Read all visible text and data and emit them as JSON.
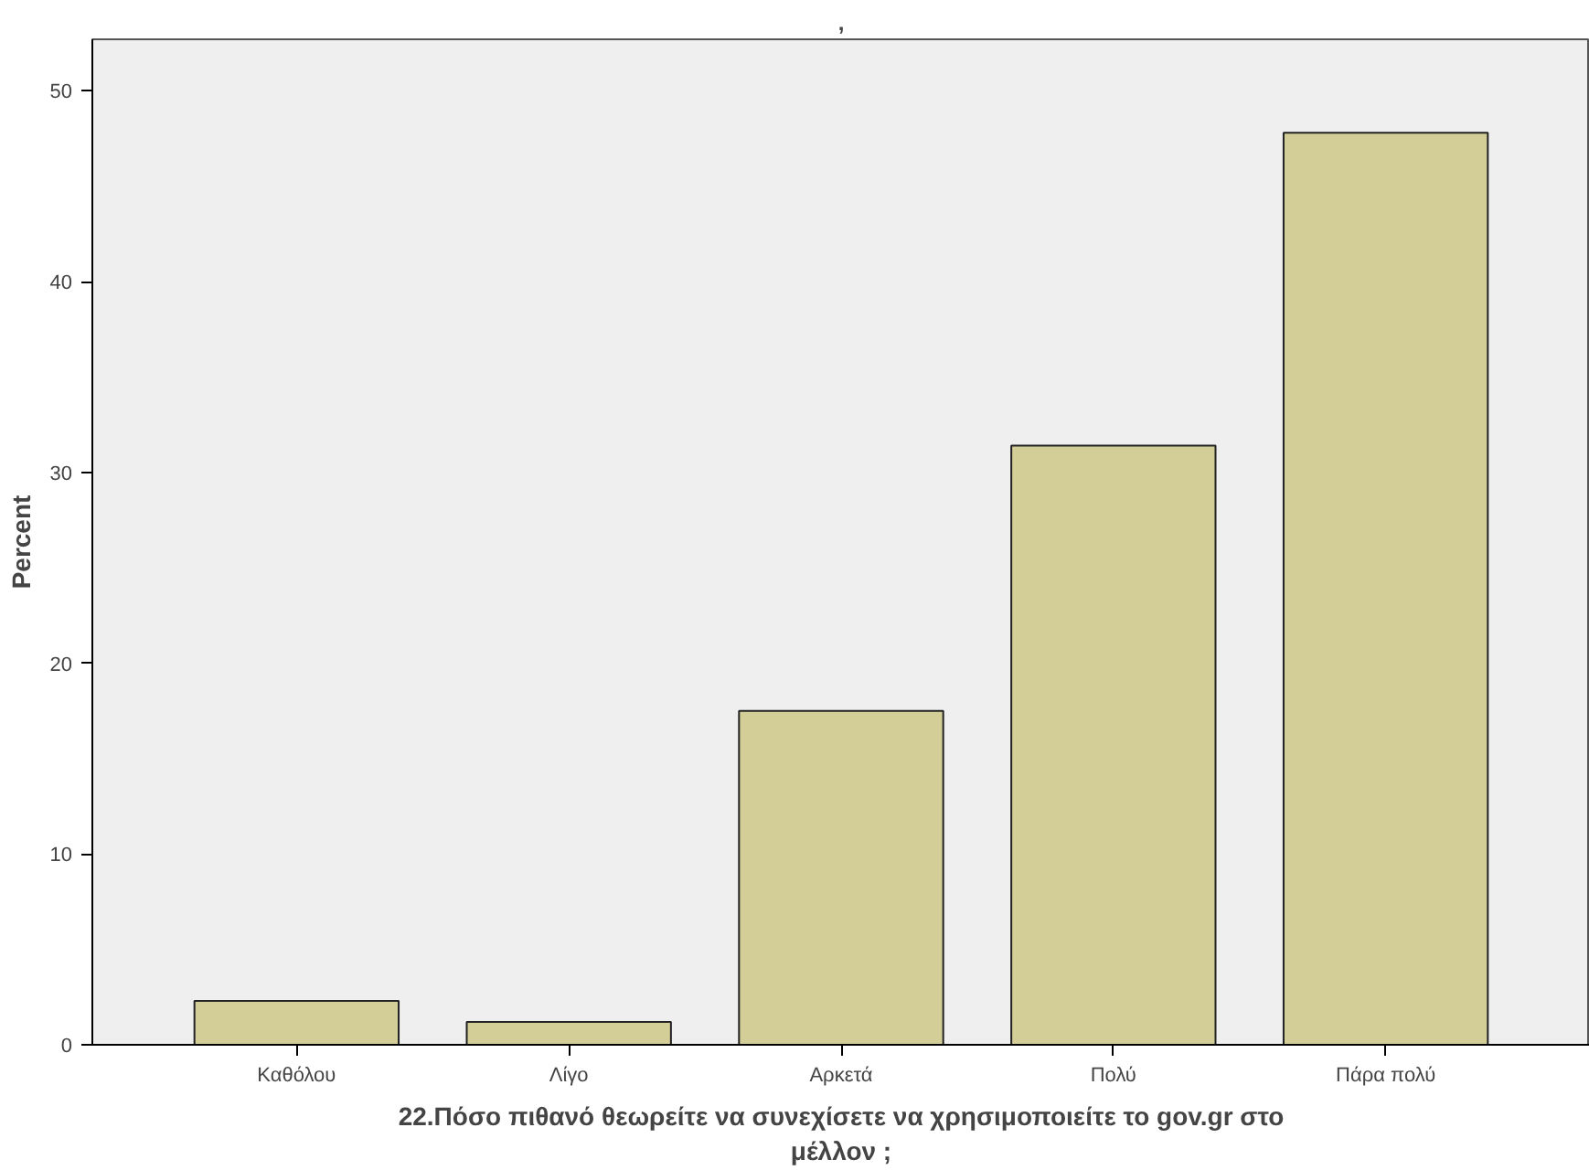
{
  "chart_data": {
    "type": "bar",
    "title": ",",
    "xlabel": "22.Πόσο πιθανό θεωρείτε να συνεχίσετε να χρησιμοποιείτε το gov.gr στο μέλλον ;",
    "ylabel": "Percent",
    "categories": [
      "Καθόλου",
      "Λίγο",
      "Αρκετά",
      "Πολύ",
      "Πάρα πολύ"
    ],
    "values": [
      2.3,
      1.2,
      17.5,
      31.4,
      47.8
    ],
    "color": "#d3ce97",
    "ylim": [
      0,
      52.7
    ],
    "yticks": [
      0,
      10,
      20,
      30,
      40,
      50
    ],
    "grid": false
  }
}
